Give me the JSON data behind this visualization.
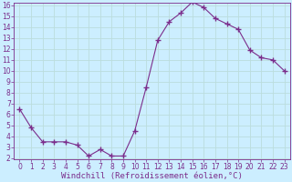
{
  "x": [
    0,
    1,
    2,
    3,
    4,
    5,
    6,
    7,
    8,
    9,
    10,
    11,
    12,
    13,
    14,
    15,
    16,
    17,
    18,
    19,
    20,
    21,
    22,
    23
  ],
  "y": [
    6.5,
    4.8,
    3.5,
    3.5,
    3.5,
    3.2,
    2.2,
    2.8,
    2.2,
    2.2,
    4.5,
    8.5,
    12.8,
    14.5,
    15.3,
    16.3,
    15.8,
    14.8,
    14.3,
    13.8,
    11.9,
    11.2,
    11.0,
    10.0
  ],
  "line_color": "#7b2d8b",
  "marker": "+",
  "marker_size": 4,
  "bg_color": "#cceeff",
  "grid_color": "#bbdddd",
  "xlabel": "Windchill (Refroidissement éolien,°C)",
  "ylim": [
    2,
    16
  ],
  "xlim": [
    -0.5,
    23.5
  ],
  "yticks": [
    2,
    3,
    4,
    5,
    6,
    7,
    8,
    9,
    10,
    11,
    12,
    13,
    14,
    15,
    16
  ],
  "xticks": [
    0,
    1,
    2,
    3,
    4,
    5,
    6,
    7,
    8,
    9,
    10,
    11,
    12,
    13,
    14,
    15,
    16,
    17,
    18,
    19,
    20,
    21,
    22,
    23
  ],
  "tick_fontsize": 5.5,
  "xlabel_fontsize": 6.5,
  "linewidth": 0.8
}
